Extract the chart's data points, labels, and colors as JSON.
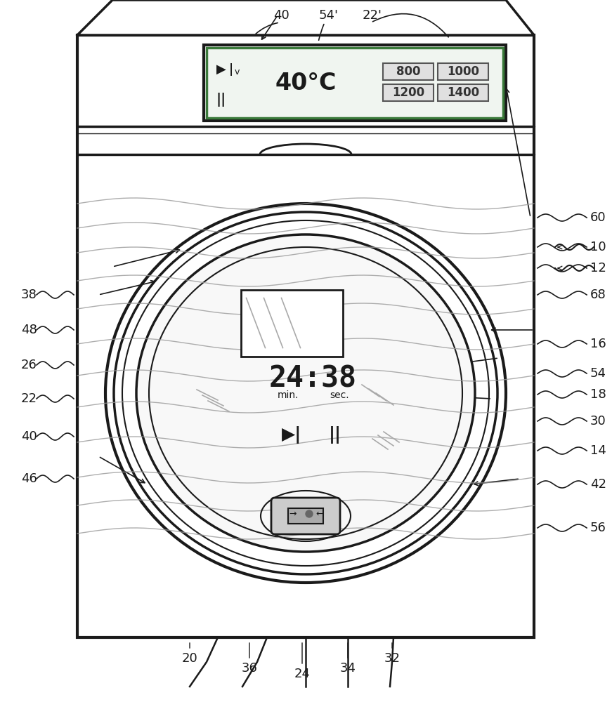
{
  "bg_color": "#ffffff",
  "line_color": "#1a1a1a",
  "rpm_values": [
    "800",
    "1000",
    "1200",
    "1400"
  ],
  "time_text": "24:38",
  "temp_text": "40°C",
  "right_labels": [
    [
      840,
      690,
      "60"
    ],
    [
      840,
      648,
      "10"
    ],
    [
      840,
      618,
      "12"
    ],
    [
      840,
      580,
      "68"
    ],
    [
      840,
      510,
      "16"
    ],
    [
      840,
      468,
      "54"
    ],
    [
      840,
      438,
      "18"
    ],
    [
      840,
      400,
      "30"
    ],
    [
      840,
      358,
      "14"
    ],
    [
      840,
      310,
      "42"
    ],
    [
      840,
      248,
      "56"
    ]
  ],
  "left_labels": [
    [
      30,
      580,
      "38"
    ],
    [
      30,
      530,
      "48"
    ],
    [
      30,
      480,
      "26"
    ],
    [
      30,
      432,
      "22"
    ],
    [
      30,
      378,
      "40"
    ],
    [
      30,
      318,
      "46"
    ]
  ],
  "top_labels": [
    [
      400,
      978,
      "40"
    ],
    [
      468,
      978,
      "54'"
    ],
    [
      530,
      978,
      "22'"
    ]
  ],
  "bottom_labels": [
    [
      270,
      62,
      "20"
    ],
    [
      355,
      48,
      "36"
    ],
    [
      430,
      40,
      "24"
    ],
    [
      495,
      48,
      "34"
    ],
    [
      558,
      62,
      "32"
    ]
  ]
}
